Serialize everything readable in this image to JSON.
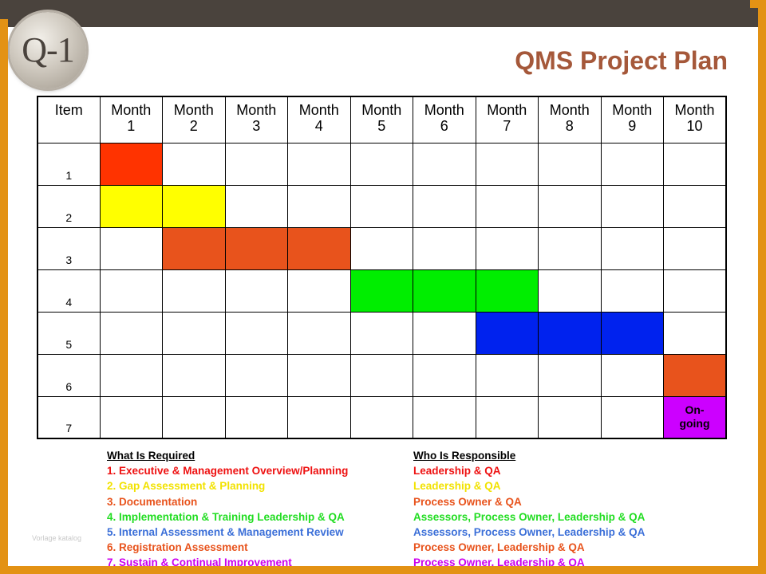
{
  "logo": {
    "text": "Q-1"
  },
  "title": "QMS Project Plan",
  "grid": {
    "headers": [
      "Item",
      "Month\n1",
      "Month\n2",
      "Month\n3",
      "Month\n4",
      "Month\n5",
      "Month\n6",
      "Month\n7",
      "Month\n8",
      "Month\n9",
      "Month\n10"
    ],
    "rows": [
      {
        "item": "1",
        "start_month": 1,
        "end_month": 1,
        "color": "#ff3300"
      },
      {
        "item": "2",
        "start_month": 1,
        "end_month": 2,
        "color": "#ffff00"
      },
      {
        "item": "3",
        "start_month": 2,
        "end_month": 4,
        "color": "#e8531c"
      },
      {
        "item": "4",
        "start_month": 5,
        "end_month": 7,
        "color": "#00ee00"
      },
      {
        "item": "5",
        "start_month": 7,
        "end_month": 9,
        "color": "#0022ee"
      },
      {
        "item": "6",
        "start_month": 10,
        "end_month": 10,
        "color": "#e8531c"
      },
      {
        "item": "7",
        "start_month": 10,
        "end_month": 10,
        "color": "#cc00ff",
        "label": "On-\ngoing"
      }
    ]
  },
  "legend": {
    "left_header": "What Is Required",
    "right_header": "Who Is Responsible",
    "items": [
      {
        "what": "1. Executive & Management Overview/Planning",
        "who": "Leadership & QA",
        "color": "#ee1111"
      },
      {
        "what": "2. Gap Assessment & Planning",
        "who": "Leadership & QA",
        "color": "#f2e200"
      },
      {
        "what": "3. Documentation",
        "who": "Process Owner & QA",
        "color": "#e8531c"
      },
      {
        "what": "4. Implementation & Training Leadership & QA",
        "who": "Assessors, Process Owner, Leadership & QA",
        "color": "#22dd22"
      },
      {
        "what": "5. Internal Assessment & Management Review",
        "who": "Assessors, Process Owner, Leadership & QA",
        "color": "#3b6fd8"
      },
      {
        "what": "6. Registration Assessment",
        "who": "Process Owner, Leadership & QA",
        "color": "#e8531c"
      },
      {
        "what": "7. Sustain & Continual Improvement",
        "who": "Process Owner, Leadership & QA",
        "color": "#cc00ee"
      }
    ]
  },
  "watermark": "Vorlage katalog"
}
